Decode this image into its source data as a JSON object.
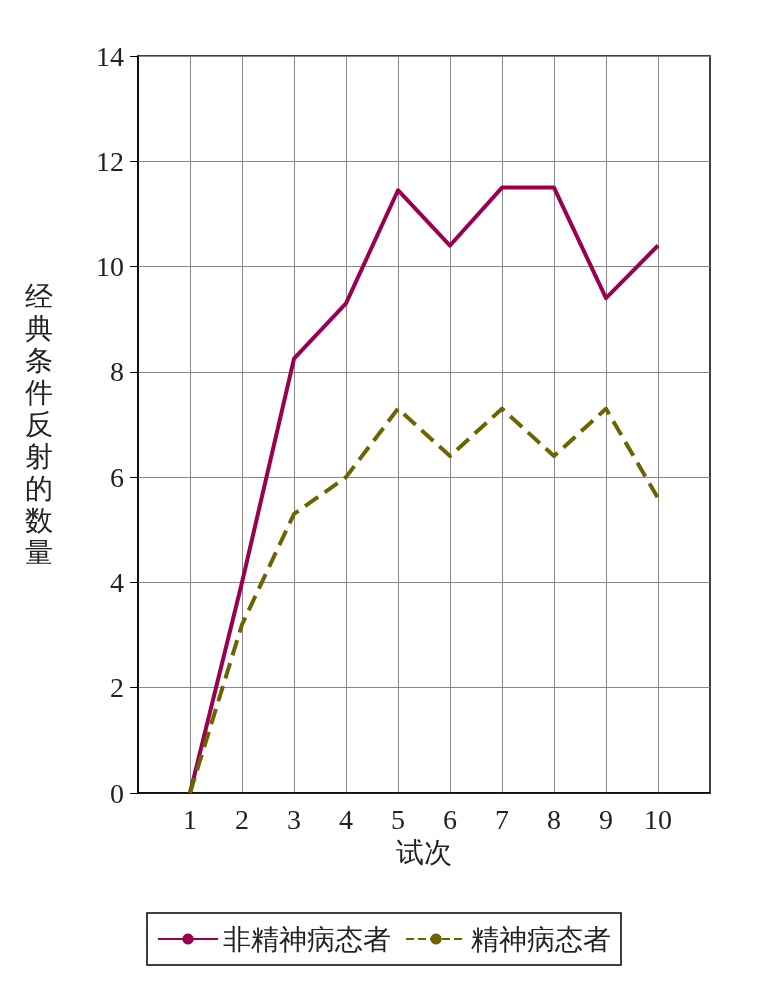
{
  "chart_data": {
    "type": "line",
    "xlabel": "试次",
    "ylabel": "经典条件反射的数量",
    "x": [
      1,
      2,
      3,
      4,
      5,
      6,
      7,
      8,
      9,
      10
    ],
    "series": [
      {
        "name": "非精神病态者",
        "color": "#9b0050",
        "line_style": "solid",
        "values": [
          0,
          4,
          8.25,
          9.3,
          11.45,
          10.4,
          11.5,
          11.5,
          9.4,
          10.4
        ]
      },
      {
        "name": "精神病态者",
        "color": "#6b6400",
        "line_style": "dashed",
        "values": [
          0,
          3.2,
          5.3,
          6,
          7.3,
          6.4,
          7.3,
          6.4,
          7.3,
          5.6
        ]
      }
    ],
    "xlim": [
      0,
      11
    ],
    "xticks": [
      1,
      2,
      3,
      4,
      5,
      6,
      7,
      8,
      9,
      10
    ],
    "ylim": [
      0,
      14
    ],
    "yticks": [
      0,
      2,
      4,
      6,
      8,
      10,
      12,
      14
    ],
    "grid": true,
    "legend": "bottom",
    "marker": "none"
  }
}
